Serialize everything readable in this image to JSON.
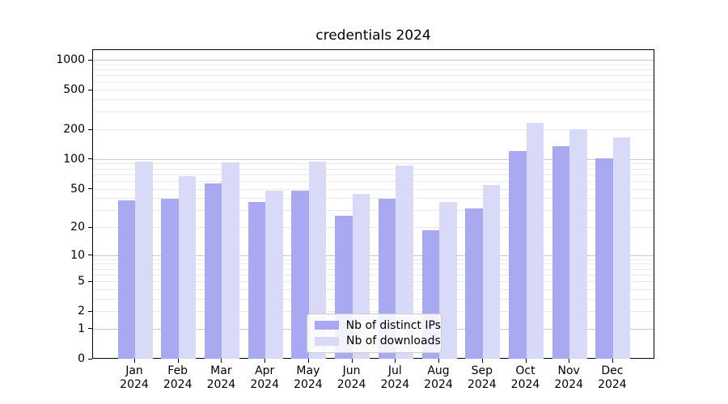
{
  "chart_data": {
    "type": "bar",
    "title": "credentials 2024",
    "categories": [
      "Jan 2024",
      "Feb 2024",
      "Mar 2024",
      "Apr 2024",
      "May 2024",
      "Jun 2024",
      "Jul 2024",
      "Aug 2024",
      "Sep 2024",
      "Oct 2024",
      "Nov 2024",
      "Dec 2024"
    ],
    "series": [
      {
        "name": "Nb of distinct IPs",
        "color": "#a9a9f1",
        "values": [
          39,
          40,
          58,
          37,
          49,
          27,
          40,
          19,
          32,
          122,
          138,
          104
        ]
      },
      {
        "name": "Nb of downloads",
        "color": "#d9d9f8",
        "values": [
          97,
          68,
          94,
          49,
          97,
          45,
          87,
          37,
          56,
          235,
          205,
          168
        ]
      }
    ],
    "xlabel": "",
    "ylabel": "",
    "yscale": "log1p",
    "y_ticks": [
      1000,
      500,
      200,
      100,
      50,
      20,
      10,
      5,
      2,
      1,
      0
    ],
    "ylim": [
      0,
      1275
    ],
    "grid": true,
    "legend_position": "lower center",
    "colors": {
      "axis": "#000000",
      "grid_major": "#c9c9c9",
      "grid_minor": "#eaeaea",
      "background": "#ffffff"
    }
  }
}
